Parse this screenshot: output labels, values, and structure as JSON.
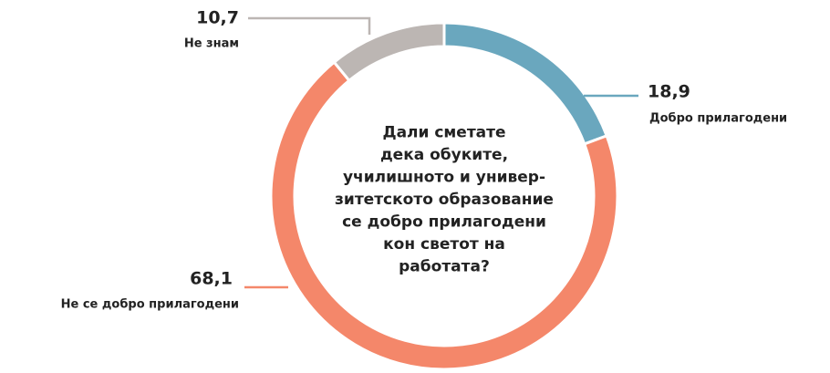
{
  "chart_data": {
    "type": "donut",
    "title_lines": [
      "Дали сметате",
      "дека обуките,",
      "училишното и универ-",
      "зитетското образование",
      "се добро прилагодени",
      "кон светот на",
      "работата?"
    ],
    "categories": [
      "Добро прилагодени",
      "Не се добро прилагодени",
      "Не знам"
    ],
    "values": [
      18.9,
      68.1,
      10.7
    ],
    "value_labels": [
      "18,9",
      "68,1",
      "10,7"
    ],
    "colors": [
      "#6aa7be",
      "#f4876a",
      "#bcb6b3"
    ]
  }
}
